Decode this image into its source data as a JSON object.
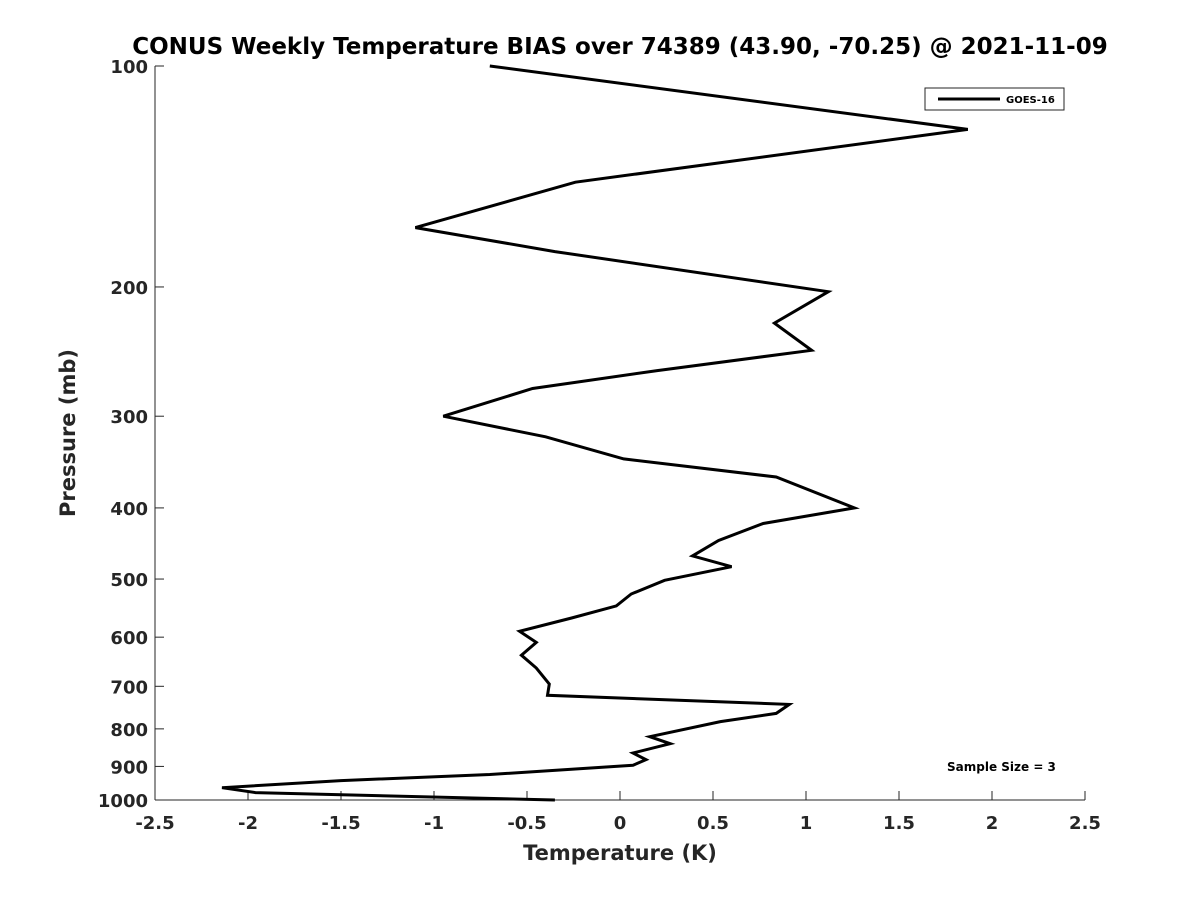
{
  "chart_data": {
    "type": "line",
    "title": "CONUS Weekly Temperature BIAS over 74389 (43.90, -70.25) @ 2021-11-09",
    "xlabel": "Temperature (K)",
    "ylabel": "Pressure (mb)",
    "xlim": [
      -2.5,
      2.5
    ],
    "ylim": [
      100,
      1000
    ],
    "y_scale": "log",
    "y_reversed": true,
    "x_ticks": [
      -2.5,
      -2,
      -1.5,
      -1,
      -0.5,
      0,
      0.5,
      1,
      1.5,
      2,
      2.5
    ],
    "x_tick_labels": [
      "-2.5",
      "-2",
      "-1.5",
      "-1",
      "-0.5",
      "0",
      "0.5",
      "1",
      "1.5",
      "2",
      "2.5"
    ],
    "y_ticks": [
      100,
      200,
      300,
      400,
      500,
      600,
      700,
      800,
      900,
      1000
    ],
    "y_tick_labels": [
      "100",
      "200",
      "300",
      "400",
      "500",
      "600",
      "700",
      "800",
      "900",
      "1000"
    ],
    "grid": false,
    "legend_position": "top-right",
    "annotation": "Sample Size = 3",
    "series": [
      {
        "name": "GOES-16",
        "color": "#000000",
        "points": [
          {
            "t": -0.7,
            "p": 100
          },
          {
            "t": 1.87,
            "p": 122
          },
          {
            "t": -0.24,
            "p": 144
          },
          {
            "t": -1.1,
            "p": 166
          },
          {
            "t": -0.35,
            "p": 179
          },
          {
            "t": 1.12,
            "p": 203
          },
          {
            "t": 0.83,
            "p": 224
          },
          {
            "t": 1.03,
            "p": 244
          },
          {
            "t": 0.2,
            "p": 260
          },
          {
            "t": -0.47,
            "p": 275
          },
          {
            "t": -0.95,
            "p": 300
          },
          {
            "t": -0.4,
            "p": 320
          },
          {
            "t": 0.02,
            "p": 343
          },
          {
            "t": 0.84,
            "p": 363
          },
          {
            "t": 1.26,
            "p": 400
          },
          {
            "t": 0.77,
            "p": 420
          },
          {
            "t": 0.53,
            "p": 443
          },
          {
            "t": 0.39,
            "p": 465
          },
          {
            "t": 0.6,
            "p": 481
          },
          {
            "t": 0.24,
            "p": 502
          },
          {
            "t": 0.06,
            "p": 524
          },
          {
            "t": -0.02,
            "p": 544
          },
          {
            "t": -0.26,
            "p": 565
          },
          {
            "t": -0.54,
            "p": 589
          },
          {
            "t": -0.45,
            "p": 610
          },
          {
            "t": -0.53,
            "p": 635
          },
          {
            "t": -0.45,
            "p": 661
          },
          {
            "t": -0.38,
            "p": 695
          },
          {
            "t": -0.39,
            "p": 720
          },
          {
            "t": 0.91,
            "p": 741
          },
          {
            "t": 0.84,
            "p": 762
          },
          {
            "t": 0.54,
            "p": 782
          },
          {
            "t": 0.16,
            "p": 820
          },
          {
            "t": 0.27,
            "p": 838
          },
          {
            "t": 0.07,
            "p": 863
          },
          {
            "t": 0.14,
            "p": 881
          },
          {
            "t": 0.07,
            "p": 897
          },
          {
            "t": -0.7,
            "p": 923
          },
          {
            "t": -1.5,
            "p": 941
          },
          {
            "t": -2.14,
            "p": 962
          },
          {
            "t": -1.96,
            "p": 977
          },
          {
            "t": -0.35,
            "p": 1000
          }
        ]
      }
    ]
  }
}
